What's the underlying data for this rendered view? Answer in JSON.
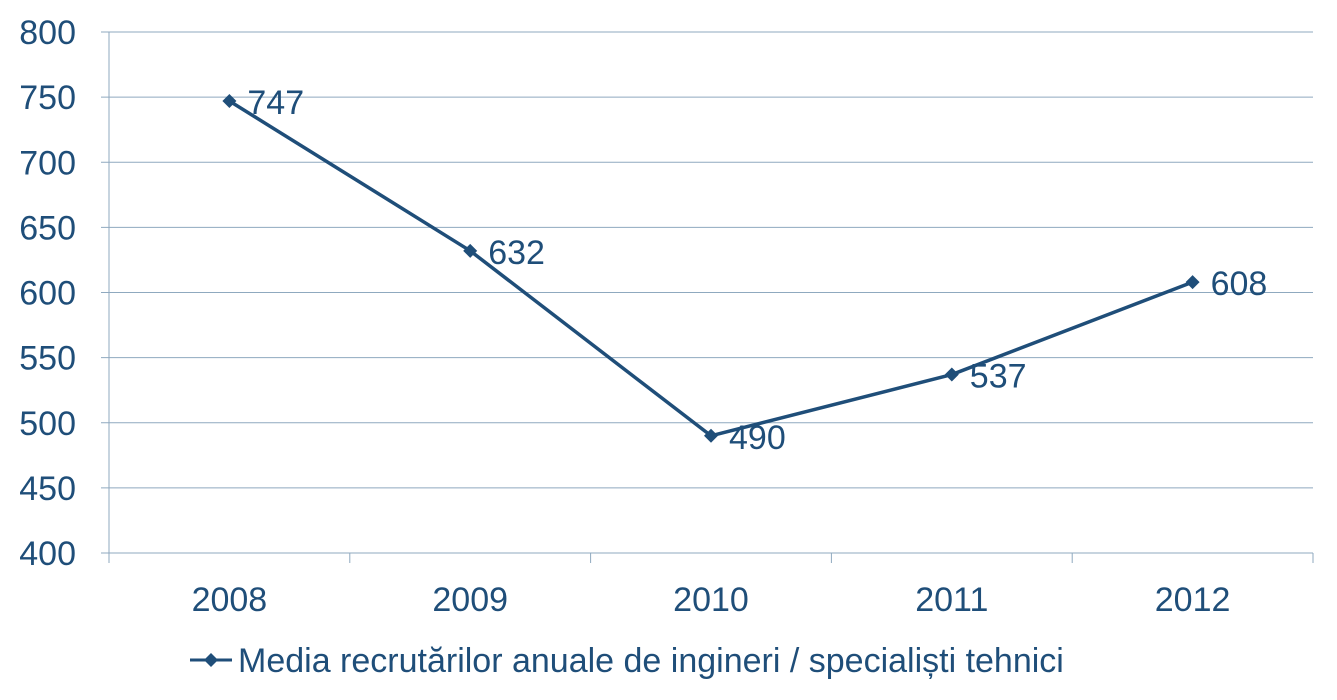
{
  "chart_data": {
    "type": "line",
    "title": "",
    "xlabel": "",
    "ylabel": "",
    "categories": [
      "2008",
      "2009",
      "2010",
      "2011",
      "2012"
    ],
    "series": [
      {
        "name": "Media recrutărilor anuale de ingineri / specialiști tehnici",
        "values": [
          747,
          632,
          490,
          537,
          608
        ],
        "color": "#1F4E79",
        "marker": "diamond"
      }
    ],
    "ylim": [
      400,
      800
    ],
    "yticks": [
      400,
      450,
      500,
      550,
      600,
      650,
      700,
      750,
      800
    ],
    "grid": true,
    "legend": "bottom",
    "data_labels": true
  }
}
